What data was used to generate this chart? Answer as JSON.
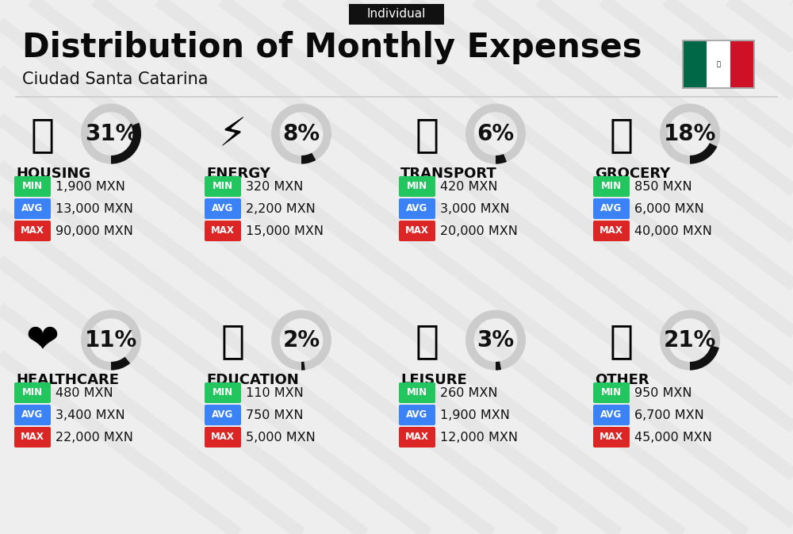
{
  "title": "Distribution of Monthly Expenses",
  "subtitle": "Ciudad Santa Catarina",
  "tag": "Individual",
  "bg_color": "#eeeeee",
  "categories": [
    {
      "name": "HOUSING",
      "pct": 31,
      "emoji": "🏗",
      "min_val": "1,900 MXN",
      "avg_val": "13,000 MXN",
      "max_val": "90,000 MXN",
      "row": 0,
      "col": 0
    },
    {
      "name": "ENERGY",
      "pct": 8,
      "emoji": "⚡",
      "min_val": "320 MXN",
      "avg_val": "2,200 MXN",
      "max_val": "15,000 MXN",
      "row": 0,
      "col": 1
    },
    {
      "name": "TRANSPORT",
      "pct": 6,
      "emoji": "🚌",
      "min_val": "420 MXN",
      "avg_val": "3,000 MXN",
      "max_val": "20,000 MXN",
      "row": 0,
      "col": 2
    },
    {
      "name": "GROCERY",
      "pct": 18,
      "emoji": "🛒",
      "min_val": "850 MXN",
      "avg_val": "6,000 MXN",
      "max_val": "40,000 MXN",
      "row": 0,
      "col": 3
    },
    {
      "name": "HEALTHCARE",
      "pct": 11,
      "emoji": "❤️",
      "min_val": "480 MXN",
      "avg_val": "3,400 MXN",
      "max_val": "22,000 MXN",
      "row": 1,
      "col": 0
    },
    {
      "name": "EDUCATION",
      "pct": 2,
      "emoji": "🎓",
      "min_val": "110 MXN",
      "avg_val": "750 MXN",
      "max_val": "5,000 MXN",
      "row": 1,
      "col": 1
    },
    {
      "name": "LEISURE",
      "pct": 3,
      "emoji": "🛍",
      "min_val": "260 MXN",
      "avg_val": "1,900 MXN",
      "max_val": "12,000 MXN",
      "row": 1,
      "col": 2
    },
    {
      "name": "OTHER",
      "pct": 21,
      "emoji": "💰",
      "min_val": "950 MXN",
      "avg_val": "6,700 MXN",
      "max_val": "45,000 MXN",
      "row": 1,
      "col": 3
    }
  ],
  "min_color": "#22c55e",
  "avg_color": "#3b82f6",
  "max_color": "#dc2626",
  "donut_filled_color": "#111111",
  "donut_empty_color": "#cccccc",
  "title_fontsize": 30,
  "subtitle_fontsize": 15,
  "tag_fontsize": 11,
  "cat_fontsize": 13,
  "pct_fontsize": 20,
  "val_fontsize": 11.5,
  "badge_fontsize": 8.5
}
